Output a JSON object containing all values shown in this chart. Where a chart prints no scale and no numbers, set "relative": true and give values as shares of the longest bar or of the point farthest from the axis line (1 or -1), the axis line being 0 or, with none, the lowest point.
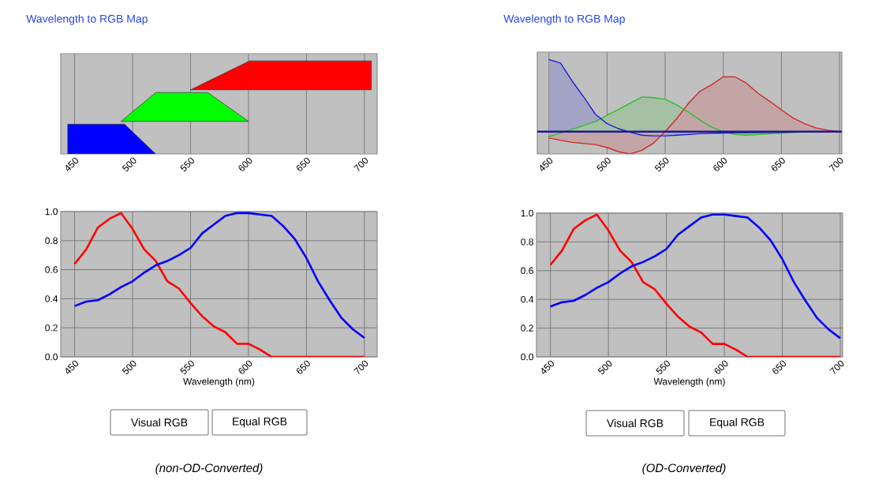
{
  "chart_data": [
    {
      "type": "area",
      "title": "Wavelength to RGB Map",
      "relative": true,
      "xlim": [
        438,
        711
      ],
      "xticks": [
        450,
        500,
        550,
        600,
        650,
        700
      ],
      "grid": "x",
      "series": [
        {
          "color": "#ff0000",
          "x": [
            550,
            601,
            706,
            706
          ],
          "values": [
            0.69,
            1,
            1,
            0.69
          ]
        },
        {
          "color": "#00ff00",
          "x": [
            490,
            520,
            565,
            600,
            490
          ],
          "values": [
            0.35,
            0.66,
            0.66,
            0.35,
            0.35
          ]
        },
        {
          "color": "#0000ff",
          "x": [
            444,
            493,
            520,
            444
          ],
          "values": [
            0.32,
            0.32,
            0,
            0
          ]
        }
      ]
    },
    {
      "type": "line",
      "xlabel": "Wavelength (nm)",
      "xlim": [
        438,
        711
      ],
      "ylim": [
        0,
        1
      ],
      "xticks": [
        450,
        500,
        550,
        600,
        650,
        700
      ],
      "yticks": [
        {
          "value": 0,
          "label": "0.0"
        },
        {
          "value": 0.2,
          "label": "0.2"
        },
        {
          "value": 0.4,
          "label": "0.4"
        },
        {
          "value": 0.6,
          "label": "0.6"
        },
        {
          "value": 0.8,
          "label": "0.8"
        },
        {
          "value": 1,
          "label": "1.0"
        }
      ],
      "grid": true,
      "annotations": [
        "Visual RGB",
        "Equal RGB",
        "(non-OD-Converted)"
      ],
      "series": [
        {
          "color": "#ff0000",
          "x": [
            450,
            460,
            470,
            480,
            490,
            500,
            510,
            520,
            530,
            540,
            550,
            560,
            570,
            580,
            590,
            600,
            610,
            620,
            630,
            640,
            650,
            660,
            670,
            680,
            690,
            700
          ],
          "values": [
            0.64,
            0.74,
            0.89,
            0.95,
            0.99,
            0.88,
            0.74,
            0.66,
            0.52,
            0.47,
            0.37,
            0.28,
            0.21,
            0.17,
            0.09,
            0.09,
            0.05,
            0,
            0,
            0,
            0,
            0,
            0,
            0,
            0,
            0
          ]
        },
        {
          "color": "#0000ff",
          "x": [
            450,
            460,
            470,
            480,
            490,
            500,
            510,
            520,
            530,
            540,
            550,
            560,
            570,
            580,
            590,
            600,
            610,
            620,
            630,
            640,
            650,
            660,
            670,
            680,
            690,
            700
          ],
          "values": [
            0.35,
            0.38,
            0.39,
            0.43,
            0.48,
            0.52,
            0.58,
            0.63,
            0.66,
            0.7,
            0.75,
            0.85,
            0.91,
            0.97,
            0.99,
            0.99,
            0.98,
            0.97,
            0.9,
            0.81,
            0.68,
            0.52,
            0.39,
            0.27,
            0.19,
            0.13
          ]
        }
      ]
    },
    {
      "type": "area",
      "title": "Wavelength to RGB Map",
      "relative": true,
      "xlim": [
        440,
        702
      ],
      "xticks": [
        450,
        500,
        550,
        600,
        650,
        700
      ],
      "grid": "x",
      "ref_lines": [
        {
          "axis": "y",
          "value": 0,
          "color": "#1c1c8c"
        }
      ],
      "series": [
        {
          "color": "#d02828",
          "x": [
            450,
            470,
            490,
            500,
            510,
            520,
            530,
            540,
            550,
            560,
            570,
            580,
            590,
            600,
            610,
            620,
            630,
            640,
            650,
            660,
            670,
            680,
            690,
            700
          ],
          "values": [
            -0.09,
            -0.15,
            -0.18,
            -0.22,
            -0.28,
            -0.31,
            -0.26,
            -0.16,
            0,
            0.18,
            0.39,
            0.56,
            0.65,
            0.76,
            0.76,
            0.67,
            0.53,
            0.42,
            0.3,
            0.19,
            0.11,
            0.05,
            0.02,
            0
          ]
        },
        {
          "color": "#28c028",
          "x": [
            450,
            470,
            490,
            510,
            530,
            540,
            550,
            560,
            570,
            580,
            590,
            600,
            610,
            620,
            640,
            660,
            700
          ],
          "values": [
            -0.07,
            0.03,
            0.14,
            0.31,
            0.48,
            0.47,
            0.45,
            0.37,
            0.27,
            0.16,
            0.06,
            0,
            -0.04,
            -0.05,
            -0.03,
            -0.01,
            0
          ]
        },
        {
          "color": "#2020d0",
          "x": [
            450,
            460,
            470,
            480,
            490,
            500,
            510,
            520,
            530,
            540,
            550,
            560,
            580,
            600,
            700
          ],
          "values": [
            1,
            0.95,
            0.7,
            0.48,
            0.24,
            0.11,
            0.04,
            -0.01,
            -0.05,
            -0.06,
            -0.06,
            -0.05,
            -0.03,
            -0.02,
            0
          ]
        }
      ]
    },
    {
      "type": "line",
      "xlabel": "Wavelength (nm)",
      "xlim": [
        438,
        702
      ],
      "ylim": [
        0,
        1
      ],
      "xticks": [
        450,
        500,
        550,
        600,
        650,
        700
      ],
      "yticks": [
        {
          "value": 0,
          "label": "0.0"
        },
        {
          "value": 0.2,
          "label": "0.2"
        },
        {
          "value": 0.4,
          "label": "0.4"
        },
        {
          "value": 0.6,
          "label": "0.6"
        },
        {
          "value": 0.8,
          "label": "0.8"
        },
        {
          "value": 1,
          "label": "1.0"
        }
      ],
      "grid": true,
      "annotations": [
        "Visual RGB",
        "Equal RGB",
        "(OD-Converted)"
      ],
      "series": [
        {
          "color": "#ff0000",
          "x": [
            450,
            460,
            470,
            480,
            490,
            500,
            510,
            520,
            530,
            540,
            550,
            560,
            570,
            580,
            590,
            600,
            610,
            620,
            630,
            640,
            650,
            660,
            670,
            680,
            690,
            700
          ],
          "values": [
            0.64,
            0.74,
            0.89,
            0.95,
            0.99,
            0.88,
            0.74,
            0.66,
            0.52,
            0.47,
            0.37,
            0.28,
            0.21,
            0.17,
            0.09,
            0.09,
            0.05,
            0,
            0,
            0,
            0,
            0,
            0,
            0,
            0,
            0
          ]
        },
        {
          "color": "#0000ff",
          "x": [
            450,
            460,
            470,
            480,
            490,
            500,
            510,
            520,
            530,
            540,
            550,
            560,
            570,
            580,
            590,
            600,
            610,
            620,
            630,
            640,
            650,
            660,
            670,
            680,
            690,
            700
          ],
          "values": [
            0.35,
            0.38,
            0.39,
            0.43,
            0.48,
            0.52,
            0.58,
            0.63,
            0.66,
            0.7,
            0.75,
            0.85,
            0.91,
            0.97,
            0.99,
            0.99,
            0.98,
            0.97,
            0.9,
            0.81,
            0.68,
            0.52,
            0.39,
            0.27,
            0.19,
            0.13
          ]
        }
      ]
    }
  ]
}
